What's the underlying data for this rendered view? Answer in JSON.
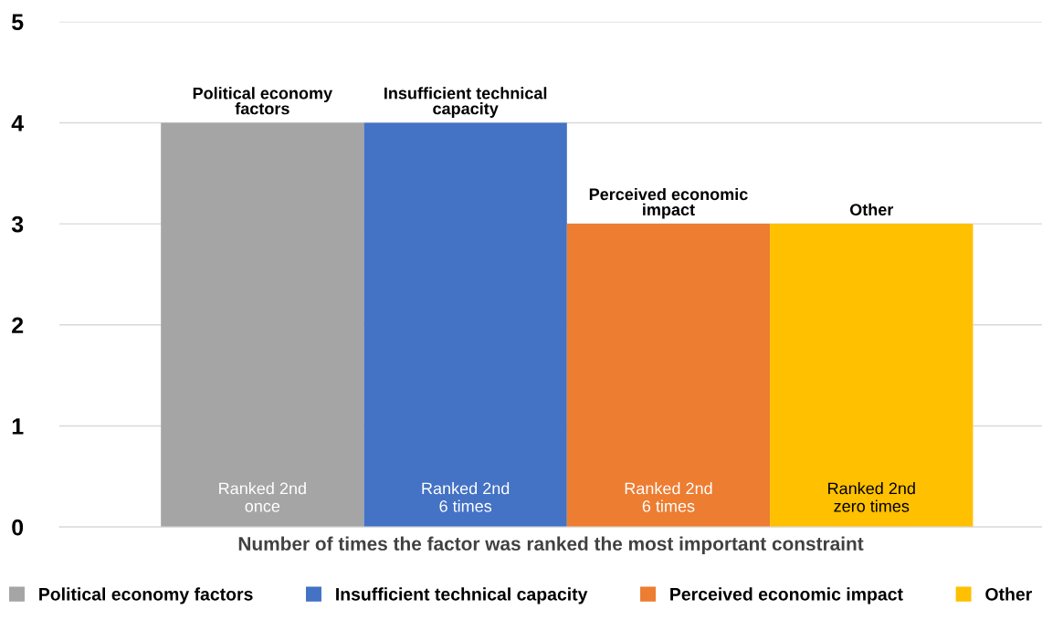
{
  "chart_data": {
    "type": "bar",
    "categories": [
      null,
      null,
      null,
      null
    ],
    "series": [
      {
        "name": "Political economy factors",
        "color": "#a5a5a5",
        "values": [
          4,
          null,
          null,
          null
        ]
      },
      {
        "name": "Insufficient technical capacity",
        "color": "#4472c4",
        "values": [
          null,
          4,
          null,
          null
        ]
      },
      {
        "name": "Perceived economic impact",
        "color": "#ed7d31",
        "values": [
          null,
          null,
          3,
          null
        ]
      },
      {
        "name": "Other",
        "color": "#ffc000",
        "values": [
          null,
          null,
          null,
          3
        ]
      }
    ],
    "xlabel": "Number of times the factor was ranked the most important constraint",
    "annotations": [
      "Ranked 2nd\nonce",
      "Ranked 2nd\n6 times",
      "Ranked 2nd\n6 times",
      "Ranked 2nd\nzero times"
    ],
    "ylim": [
      0,
      5
    ],
    "yticks": [
      0,
      1,
      2,
      3,
      4,
      5
    ],
    "grid": "y",
    "legend": "bottom"
  }
}
